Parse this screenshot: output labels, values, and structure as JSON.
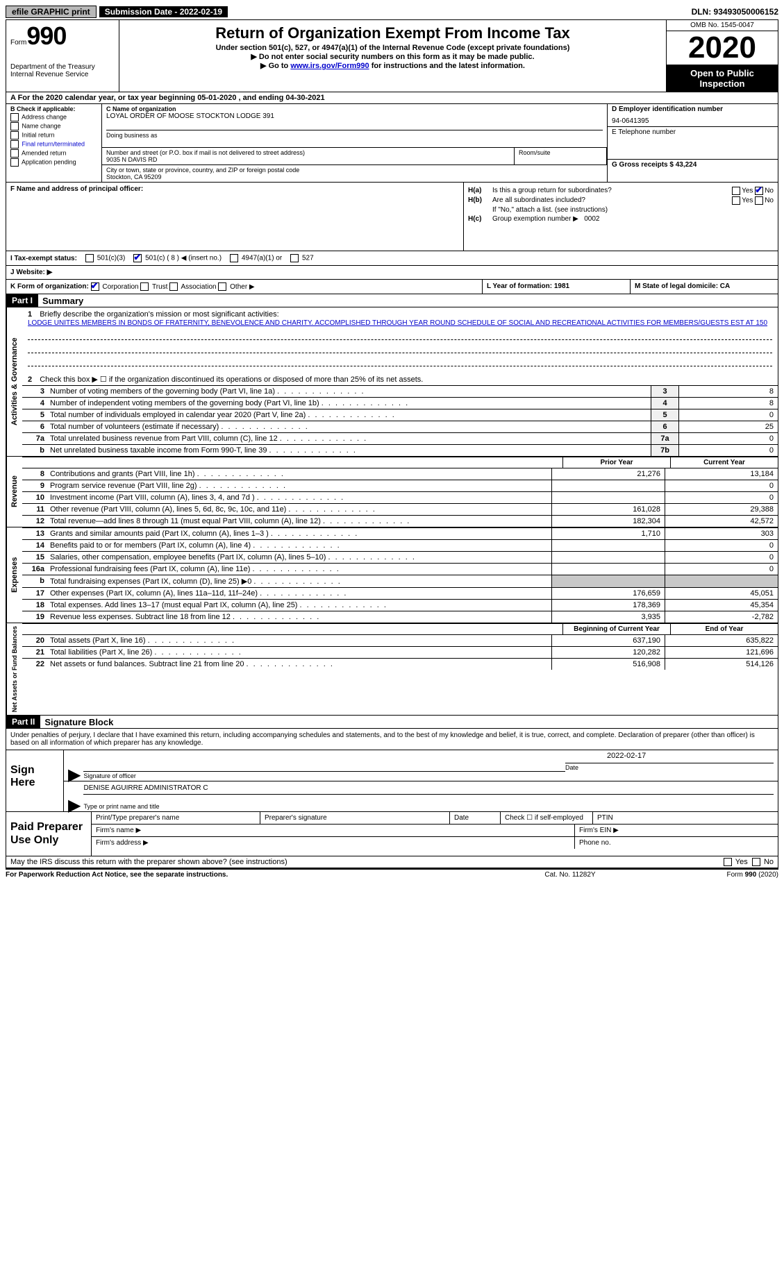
{
  "topbar": {
    "efile": "efile GRAPHIC print",
    "submission_label": "Submission Date - 2022-02-19",
    "dln": "DLN: 93493050006152"
  },
  "header": {
    "form_prefix": "Form",
    "form_number": "990",
    "department": "Department of the Treasury",
    "irs": "Internal Revenue Service",
    "title": "Return of Organization Exempt From Income Tax",
    "subtitle": "Under section 501(c), 527, or 4947(a)(1) of the Internal Revenue Code (except private foundations)",
    "instr1": "▶ Do not enter social security numbers on this form as it may be made public.",
    "instr2_prefix": "▶ Go to ",
    "instr2_link": "www.irs.gov/Form990",
    "instr2_suffix": " for instructions and the latest information.",
    "omb": "OMB No. 1545-0047",
    "year": "2020",
    "open_public": "Open to Public Inspection"
  },
  "section_a": {
    "text": "A For the 2020 calendar year, or tax year beginning 05-01-2020   , and ending 04-30-2021"
  },
  "section_b": {
    "label": "B Check if applicable:",
    "items": [
      "Address change",
      "Name change",
      "Initial return",
      "Final return/terminated",
      "Amended return",
      "Application pending"
    ]
  },
  "section_c": {
    "label": "C Name of organization",
    "org_name": "LOYAL ORDER OF MOOSE STOCKTON LODGE 391",
    "dba_label": "Doing business as",
    "addr_label": "Number and street (or P.O. box if mail is not delivered to street address)",
    "addr": "9035 N DAVIS RD",
    "room_label": "Room/suite",
    "city_label": "City or town, state or province, country, and ZIP or foreign postal code",
    "city": "Stockton, CA  95209"
  },
  "section_d": {
    "label": "D Employer identification number",
    "ein": "94-0641395"
  },
  "section_e": {
    "label": "E Telephone number"
  },
  "section_g": {
    "label": "G Gross receipts $ 43,224"
  },
  "section_f": {
    "label": "F Name and address of principal officer:"
  },
  "section_h": {
    "ha_label": "H(a)",
    "ha_text": "Is this a group return for subordinates?",
    "hb_label": "H(b)",
    "hb_text": "Are all subordinates included?",
    "hb_note": "If \"No,\" attach a list. (see instructions)",
    "hc_label": "H(c)",
    "hc_text": "Group exemption number ▶",
    "hc_value": "0002",
    "yes": "Yes",
    "no": "No"
  },
  "section_i": {
    "label": "I    Tax-exempt status:",
    "opt1": "501(c)(3)",
    "opt2": "501(c) ( 8 ) ◀ (insert no.)",
    "opt3": "4947(a)(1) or",
    "opt4": "527"
  },
  "section_j": {
    "label": "J    Website: ▶"
  },
  "section_k": {
    "label": "K Form of organization:",
    "opts": [
      "Corporation",
      "Trust",
      "Association",
      "Other ▶"
    ]
  },
  "section_l": {
    "label": "L Year of formation: 1981"
  },
  "section_m": {
    "label": "M State of legal domicile: CA"
  },
  "part1": {
    "header": "Part I",
    "title": "Summary",
    "line1_label": "1",
    "line1_text": "Briefly describe the organization's mission or most significant activities:",
    "mission": "LODGE UNITES MEMBERS IN BONDS OF FRATERNITY, BENEVOLENCE AND CHARITY. ACCOMPLISHED THROUGH YEAR ROUND SCHEDULE OF SOCIAL AND RECREATIONAL ACTIVITIES FOR MEMBERS/GUESTS EST AT 150",
    "line2_label": "2",
    "line2_text": "Check this box ▶ ☐  if the organization discontinued its operations or disposed of more than 25% of its net assets.",
    "governance_lines": [
      {
        "num": "3",
        "text": "Number of voting members of the governing body (Part VI, line 1a)",
        "col": "3",
        "val": "8"
      },
      {
        "num": "4",
        "text": "Number of independent voting members of the governing body (Part VI, line 1b)",
        "col": "4",
        "val": "8"
      },
      {
        "num": "5",
        "text": "Total number of individuals employed in calendar year 2020 (Part V, line 2a)",
        "col": "5",
        "val": "0"
      },
      {
        "num": "6",
        "text": "Total number of volunteers (estimate if necessary)",
        "col": "6",
        "val": "25"
      },
      {
        "num": "7a",
        "text": "Total unrelated business revenue from Part VIII, column (C), line 12",
        "col": "7a",
        "val": "0"
      },
      {
        "num": "b",
        "text": "Net unrelated business taxable income from Form 990-T, line 39",
        "col": "7b",
        "val": "0"
      }
    ],
    "col_headers": {
      "prior": "Prior Year",
      "current": "Current Year",
      "begin": "Beginning of Current Year",
      "end": "End of Year"
    },
    "revenue_lines": [
      {
        "num": "8",
        "text": "Contributions and grants (Part VIII, line 1h)",
        "prior": "21,276",
        "current": "13,184"
      },
      {
        "num": "9",
        "text": "Program service revenue (Part VIII, line 2g)",
        "prior": "",
        "current": "0"
      },
      {
        "num": "10",
        "text": "Investment income (Part VIII, column (A), lines 3, 4, and 7d )",
        "prior": "",
        "current": "0"
      },
      {
        "num": "11",
        "text": "Other revenue (Part VIII, column (A), lines 5, 6d, 8c, 9c, 10c, and 11e)",
        "prior": "161,028",
        "current": "29,388"
      },
      {
        "num": "12",
        "text": "Total revenue—add lines 8 through 11 (must equal Part VIII, column (A), line 12)",
        "prior": "182,304",
        "current": "42,572"
      }
    ],
    "expense_lines": [
      {
        "num": "13",
        "text": "Grants and similar amounts paid (Part IX, column (A), lines 1–3 )",
        "prior": "1,710",
        "current": "303"
      },
      {
        "num": "14",
        "text": "Benefits paid to or for members (Part IX, column (A), line 4)",
        "prior": "",
        "current": "0"
      },
      {
        "num": "15",
        "text": "Salaries, other compensation, employee benefits (Part IX, column (A), lines 5–10)",
        "prior": "",
        "current": "0"
      },
      {
        "num": "16a",
        "text": "Professional fundraising fees (Part IX, column (A), line 11e)",
        "prior": "",
        "current": "0"
      },
      {
        "num": "b",
        "text": "Total fundraising expenses (Part IX, column (D), line 25) ▶0",
        "prior": "SHADED",
        "current": "SHADED"
      },
      {
        "num": "17",
        "text": "Other expenses (Part IX, column (A), lines 11a–11d, 11f–24e)",
        "prior": "176,659",
        "current": "45,051"
      },
      {
        "num": "18",
        "text": "Total expenses. Add lines 13–17 (must equal Part IX, column (A), line 25)",
        "prior": "178,369",
        "current": "45,354"
      },
      {
        "num": "19",
        "text": "Revenue less expenses. Subtract line 18 from line 12",
        "prior": "3,935",
        "current": "-2,782"
      }
    ],
    "netasset_lines": [
      {
        "num": "20",
        "text": "Total assets (Part X, line 16)",
        "prior": "637,190",
        "current": "635,822"
      },
      {
        "num": "21",
        "text": "Total liabilities (Part X, line 26)",
        "prior": "120,282",
        "current": "121,696"
      },
      {
        "num": "22",
        "text": "Net assets or fund balances. Subtract line 21 from line 20",
        "prior": "516,908",
        "current": "514,126"
      }
    ],
    "vert_governance": "Activities & Governance",
    "vert_revenue": "Revenue",
    "vert_expenses": "Expenses",
    "vert_netassets": "Net Assets or Fund Balances"
  },
  "part2": {
    "header": "Part II",
    "title": "Signature Block",
    "declaration": "Under penalties of perjury, I declare that I have examined this return, including accompanying schedules and statements, and to the best of my knowledge and belief, it is true, correct, and complete. Declaration of preparer (other than officer) is based on all information of which preparer has any knowledge.",
    "sign_here": "Sign Here",
    "sig_label": "Signature of officer",
    "date_label": "Date",
    "sig_date": "2022-02-17",
    "name_title": "DENISE AGUIRRE  ADMINISTRATOR C",
    "name_label": "Type or print name and title",
    "paid_prep": "Paid Preparer Use Only",
    "prep_name_label": "Print/Type preparer's name",
    "prep_sig_label": "Preparer's signature",
    "prep_date_label": "Date",
    "check_if": "Check ☐ if self-employed",
    "ptin_label": "PTIN",
    "firm_name": "Firm's name  ▶",
    "firm_ein": "Firm's EIN ▶",
    "firm_addr": "Firm's address ▶",
    "phone": "Phone no."
  },
  "discuss": {
    "text": "May the IRS discuss this return with the preparer shown above? (see instructions)",
    "yes": "Yes",
    "no": "No"
  },
  "footer": {
    "left": "For Paperwork Reduction Act Notice, see the separate instructions.",
    "mid": "Cat. No. 11282Y",
    "right_prefix": "Form ",
    "right_form": "990",
    "right_suffix": " (2020)"
  },
  "colors": {
    "link": "#0000cc",
    "black": "#000000",
    "grey_bg": "#b8b8b8"
  }
}
